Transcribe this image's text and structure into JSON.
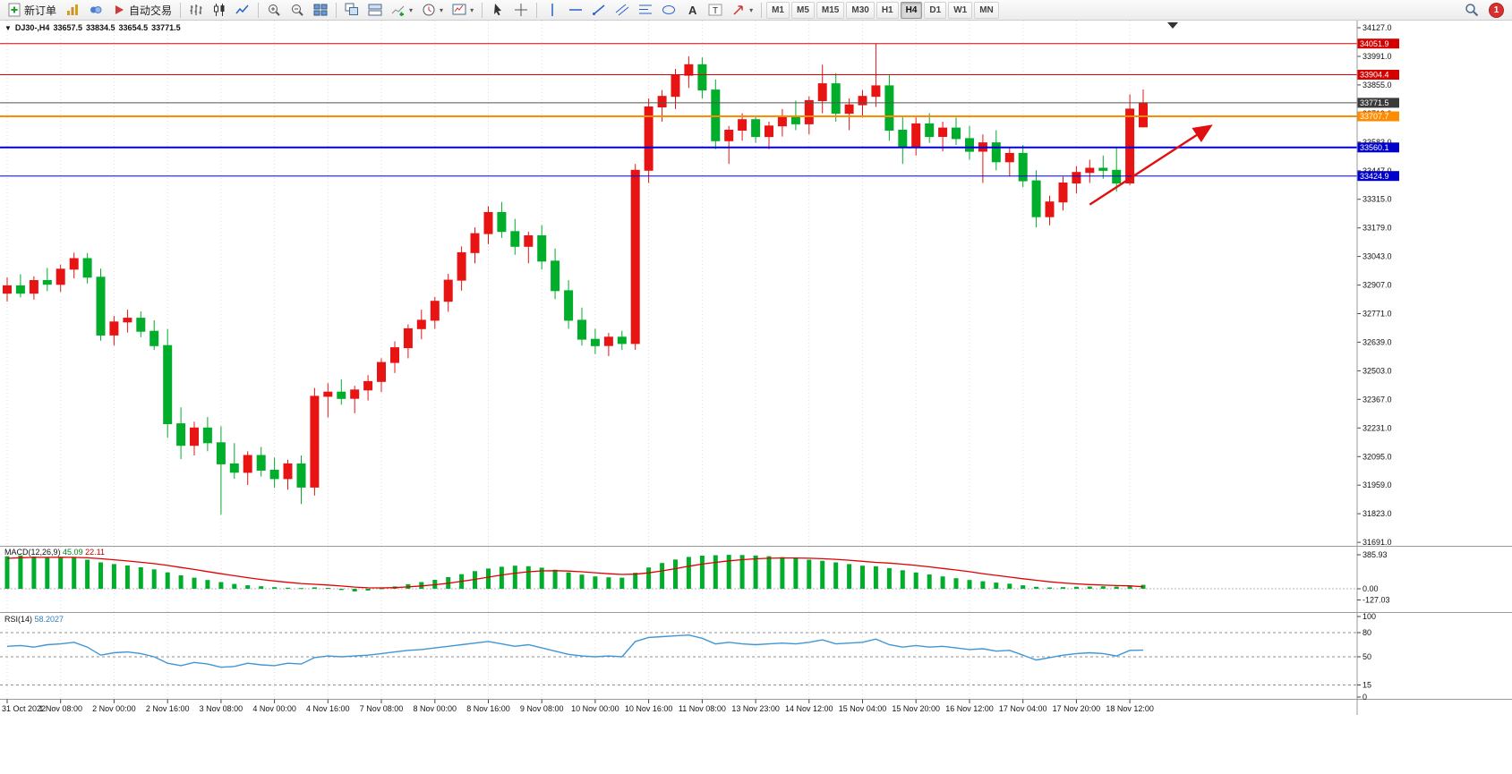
{
  "toolbar": {
    "items": [
      {
        "type": "button",
        "name": "new-order",
        "icon": "plus-doc",
        "label": "新订单"
      },
      {
        "type": "button",
        "name": "charts",
        "icon": "chart-columns"
      },
      {
        "type": "button",
        "name": "profiles",
        "icon": "profiles"
      },
      {
        "type": "button",
        "name": "auto-trading",
        "icon": "play",
        "label": "自动交易"
      },
      {
        "type": "sep"
      },
      {
        "type": "button",
        "name": "bar-chart-mode",
        "icon": "bars"
      },
      {
        "type": "button",
        "name": "candlestick-mode",
        "icon": "candles"
      },
      {
        "type": "button",
        "name": "line-chart-mode",
        "icon": "line"
      },
      {
        "type": "sep"
      },
      {
        "type": "button",
        "name": "zoom-in",
        "icon": "zoom-in"
      },
      {
        "type": "button",
        "name": "zoom-out",
        "icon": "zoom-out"
      },
      {
        "type": "button",
        "name": "tile-windows",
        "icon": "tiles"
      },
      {
        "type": "sep"
      },
      {
        "type": "button",
        "name": "cascade-windows",
        "icon": "cascade"
      },
      {
        "type": "button",
        "name": "arrange-windows",
        "icon": "arrange"
      },
      {
        "type": "button",
        "name": "indicators",
        "icon": "indicator-plus",
        "dropdown": true
      },
      {
        "type": "button",
        "name": "periods",
        "icon": "clock",
        "dropdown": true
      },
      {
        "type": "button",
        "name": "templates",
        "icon": "template",
        "dropdown": true
      },
      {
        "type": "sep"
      },
      {
        "type": "button",
        "name": "cursor",
        "icon": "cursor"
      },
      {
        "type": "button",
        "name": "crosshair",
        "icon": "crosshair"
      },
      {
        "type": "sep"
      },
      {
        "type": "button",
        "name": "vertical-line",
        "icon": "vline"
      },
      {
        "type": "button",
        "name": "horizontal-line",
        "icon": "hline"
      },
      {
        "type": "button",
        "name": "trendline",
        "icon": "trendline"
      },
      {
        "type": "button",
        "name": "equidistant-channel",
        "icon": "channel"
      },
      {
        "type": "button",
        "name": "fibonacci",
        "icon": "fibo"
      },
      {
        "type": "button",
        "name": "shapes",
        "icon": "shapes"
      },
      {
        "type": "button",
        "name": "text",
        "icon": "text-a"
      },
      {
        "type": "button",
        "name": "text-label",
        "icon": "label-t"
      },
      {
        "type": "button",
        "name": "arrows",
        "icon": "arrow-style",
        "dropdown": true
      },
      {
        "type": "sep"
      }
    ],
    "timeframes": [
      "M1",
      "M5",
      "M15",
      "M30",
      "H1",
      "H4",
      "D1",
      "W1",
      "MN"
    ],
    "active_timeframe": "H4",
    "notification_count": "1"
  },
  "quote": {
    "symbol": "DJ30-,H4",
    "open": "33657.5",
    "high": "33834.5",
    "low": "33654.5",
    "close": "33771.5"
  },
  "chart_data": {
    "type": "candlestick",
    "symbol": "DJ30-",
    "period": "H4",
    "bull_color": "#e81414",
    "bear_color": "#00ae2b",
    "time_labels": [
      "31 Oct 2022",
      "1 Nov 08:00",
      "2 Nov 00:00",
      "2 Nov 16:00",
      "3 Nov 08:00",
      "4 Nov 00:00",
      "4 Nov 16:00",
      "7 Nov 08:00",
      "8 Nov 00:00",
      "8 Nov 16:00",
      "9 Nov 08:00",
      "10 Nov 00:00",
      "10 Nov 16:00",
      "11 Nov 08:00",
      "13 Nov 23:00",
      "14 Nov 12:00",
      "15 Nov 04:00",
      "15 Nov 20:00",
      "16 Nov 12:00",
      "17 Nov 04:00",
      "17 Nov 20:00",
      "18 Nov 12:00"
    ],
    "candles_per_label": 4,
    "price_ticks": [
      "34127.0",
      "33991.0",
      "33855.0",
      "33719.0",
      "33583.0",
      "33447.0",
      "33315.0",
      "33179.0",
      "33043.0",
      "32907.0",
      "32771.0",
      "32639.0",
      "32503.0",
      "32367.0",
      "32231.0",
      "32095.0",
      "31959.0",
      "31823.0",
      "31691.0"
    ],
    "ylim": [
      31691,
      34127
    ],
    "candles": [
      [
        32870,
        32945,
        32830,
        32905
      ],
      [
        32905,
        32960,
        32850,
        32870
      ],
      [
        32870,
        32950,
        32840,
        32930
      ],
      [
        32930,
        32990,
        32880,
        32912
      ],
      [
        32912,
        33005,
        32876,
        32984
      ],
      [
        32984,
        33062,
        32940,
        33034
      ],
      [
        33034,
        33060,
        32916,
        32946
      ],
      [
        32946,
        32986,
        32645,
        32672
      ],
      [
        32672,
        32762,
        32622,
        32734
      ],
      [
        32734,
        32792,
        32684,
        32752
      ],
      [
        32752,
        32784,
        32662,
        32690
      ],
      [
        32690,
        32742,
        32602,
        32622
      ],
      [
        32622,
        32700,
        32186,
        32252
      ],
      [
        32252,
        32330,
        32084,
        32150
      ],
      [
        32150,
        32262,
        32102,
        32232
      ],
      [
        32232,
        32284,
        32122,
        32162
      ],
      [
        32162,
        32240,
        31822,
        32062
      ],
      [
        32062,
        32160,
        31992,
        32022
      ],
      [
        32022,
        32122,
        31962,
        32102
      ],
      [
        32102,
        32142,
        32002,
        32032
      ],
      [
        32032,
        32092,
        31948,
        31992
      ],
      [
        31992,
        32082,
        31940,
        32062
      ],
      [
        32062,
        32102,
        31872,
        31952
      ],
      [
        31952,
        32422,
        31912,
        32382
      ],
      [
        32382,
        32444,
        32282,
        32402
      ],
      [
        32402,
        32462,
        32342,
        32372
      ],
      [
        32372,
        32432,
        32302,
        32412
      ],
      [
        32412,
        32482,
        32362,
        32452
      ],
      [
        32452,
        32562,
        32402,
        32542
      ],
      [
        32542,
        32642,
        32492,
        32612
      ],
      [
        32612,
        32722,
        32562,
        32702
      ],
      [
        32702,
        32792,
        32652,
        32742
      ],
      [
        32742,
        32852,
        32702,
        32832
      ],
      [
        32832,
        32962,
        32782,
        32932
      ],
      [
        32932,
        33092,
        32882,
        33062
      ],
      [
        33062,
        33182,
        33012,
        33152
      ],
      [
        33152,
        33282,
        33102,
        33252
      ],
      [
        33252,
        33302,
        33132,
        33162
      ],
      [
        33162,
        33222,
        33052,
        33092
      ],
      [
        33092,
        33162,
        33012,
        33142
      ],
      [
        33142,
        33192,
        32982,
        33022
      ],
      [
        33022,
        33082,
        32842,
        32882
      ],
      [
        32882,
        32932,
        32702,
        32742
      ],
      [
        32742,
        32802,
        32622,
        32652
      ],
      [
        32652,
        32702,
        32582,
        32622
      ],
      [
        32622,
        32682,
        32572,
        32662
      ],
      [
        32662,
        32692,
        32602,
        32632
      ],
      [
        32632,
        33482,
        32602,
        33452
      ],
      [
        33452,
        33792,
        33392,
        33752
      ],
      [
        33752,
        33832,
        33682,
        33802
      ],
      [
        33802,
        33932,
        33742,
        33902
      ],
      [
        33902,
        33992,
        33842,
        33952
      ],
      [
        33952,
        33986,
        33792,
        33832
      ],
      [
        33832,
        33882,
        33552,
        33592
      ],
      [
        33592,
        33662,
        33482,
        33642
      ],
      [
        33642,
        33722,
        33592,
        33692
      ],
      [
        33692,
        33712,
        33582,
        33612
      ],
      [
        33612,
        33682,
        33552,
        33662
      ],
      [
        33662,
        33742,
        33612,
        33702
      ],
      [
        33702,
        33782,
        33642,
        33672
      ],
      [
        33672,
        33802,
        33622,
        33782
      ],
      [
        33782,
        33952,
        33722,
        33862
      ],
      [
        33862,
        33912,
        33682,
        33722
      ],
      [
        33722,
        33792,
        33642,
        33762
      ],
      [
        33762,
        33832,
        33702,
        33802
      ],
      [
        33802,
        34052,
        33752,
        33852
      ],
      [
        33852,
        33902,
        33592,
        33642
      ],
      [
        33642,
        33712,
        33482,
        33562
      ],
      [
        33562,
        33702,
        33522,
        33672
      ],
      [
        33672,
        33722,
        33582,
        33612
      ],
      [
        33612,
        33682,
        33542,
        33652
      ],
      [
        33652,
        33702,
        33572,
        33602
      ],
      [
        33602,
        33662,
        33502,
        33542
      ],
      [
        33542,
        33622,
        33392,
        33582
      ],
      [
        33582,
        33642,
        33452,
        33492
      ],
      [
        33492,
        33562,
        33422,
        33532
      ],
      [
        33532,
        33572,
        33372,
        33402
      ],
      [
        33402,
        33452,
        33182,
        33232
      ],
      [
        33232,
        33332,
        33192,
        33302
      ],
      [
        33302,
        33422,
        33262,
        33392
      ],
      [
        33392,
        33472,
        33342,
        33442
      ],
      [
        33442,
        33502,
        33392,
        33462
      ],
      [
        33462,
        33522,
        33412,
        33452
      ],
      [
        33452,
        33562,
        33352,
        33392
      ],
      [
        33392,
        33812,
        33382,
        33742
      ],
      [
        33657.5,
        33834.5,
        33654.5,
        33771.5
      ]
    ],
    "hlines": [
      {
        "label": "34051.9",
        "price": 34051.9,
        "color": "#e00000",
        "width": 1,
        "badge": "#d40000"
      },
      {
        "label": "33904.4",
        "price": 33904.4,
        "color": "#e00000",
        "width": 1,
        "badge": "#d40000"
      },
      {
        "label": "33771.5",
        "price": 33771.5,
        "color": "#555555",
        "width": 1,
        "badge": "#3a3a3a",
        "role": "current-price"
      },
      {
        "label": "33707.7",
        "price": 33707.7,
        "color": "#ff8c00",
        "width": 2,
        "badge": "#ff8c00"
      },
      {
        "label": "33560.1",
        "price": 33560.1,
        "color": "#0000dd",
        "width": 2,
        "badge": "#0000cd"
      },
      {
        "label": "33424.9",
        "price": 33424.9,
        "color": "#0000dd",
        "width": 1,
        "badge": "#0000cd"
      }
    ],
    "trend_arrow": {
      "from_index": 81,
      "from_price": 33290,
      "to_index": 90,
      "to_price": 33660,
      "color": "#e01010"
    },
    "macd": {
      "title": "MACD(12,26,9)",
      "main_value": "45.09",
      "signal_value": "22.11",
      "scale": [
        "385.93",
        "0.00",
        "-127.03"
      ],
      "histogram_color": "#00ae2b",
      "signal_color": "#e00000",
      "histogram": [
        370,
        378,
        366,
        352,
        360,
        354,
        330,
        300,
        280,
        264,
        244,
        220,
        186,
        152,
        126,
        100,
        76,
        55,
        40,
        28,
        18,
        12,
        8,
        16,
        10,
        -14,
        -30,
        -20,
        6,
        26,
        52,
        76,
        102,
        132,
        166,
        200,
        230,
        250,
        262,
        256,
        240,
        216,
        186,
        160,
        140,
        130,
        126,
        182,
        242,
        292,
        332,
        362,
        376,
        381,
        385,
        383,
        378,
        370,
        360,
        345,
        330,
        318,
        300,
        280,
        262,
        255,
        235,
        210,
        185,
        162,
        140,
        120,
        100,
        85,
        70,
        58,
        40,
        22,
        15,
        18,
        22,
        25,
        28,
        25,
        35,
        45.09
      ],
      "signal": [
        345,
        352,
        356,
        356,
        357,
        356,
        351,
        341,
        329,
        316,
        301,
        285,
        265,
        242,
        219,
        195,
        171,
        148,
        126,
        106,
        88,
        73,
        60,
        51,
        43,
        31,
        19,
        11,
        10,
        13,
        21,
        32,
        46,
        63,
        84,
        107,
        132,
        156,
        177,
        193,
        203,
        205,
        201,
        193,
        182,
        171,
        162,
        166,
        181,
        203,
        229,
        256,
        280,
        300,
        317,
        330,
        340,
        346,
        349,
        349,
        346,
        341,
        334,
        324,
        312,
        300,
        291,
        279,
        265,
        249,
        231,
        213,
        194,
        172,
        152,
        133,
        114,
        96,
        79,
        66,
        56,
        48,
        42,
        37,
        34,
        22.11
      ]
    },
    "rsi": {
      "title": "RSI(14)",
      "value": "58.2027",
      "scale": [
        "100",
        "80",
        "50",
        "15",
        "0"
      ],
      "levels": [
        80,
        50,
        15
      ],
      "color": "#3f96d6",
      "series": [
        63,
        64,
        62,
        65,
        66,
        68,
        62,
        52,
        55,
        56,
        54,
        50,
        42,
        39,
        43,
        41,
        37,
        38,
        42,
        40,
        39,
        42,
        41,
        49,
        51,
        50,
        51,
        52,
        54,
        56,
        58,
        59,
        61,
        63,
        65,
        67,
        69,
        66,
        63,
        65,
        61,
        57,
        53,
        51,
        50,
        51,
        50,
        69,
        74,
        75,
        76,
        77,
        73,
        66,
        68,
        66,
        65,
        66,
        67,
        66,
        68,
        71,
        66,
        67,
        68,
        72,
        65,
        62,
        64,
        62,
        63,
        61,
        59,
        60,
        57,
        58,
        52,
        46,
        49,
        52,
        54,
        55,
        54,
        51,
        58,
        58.2
      ]
    }
  }
}
